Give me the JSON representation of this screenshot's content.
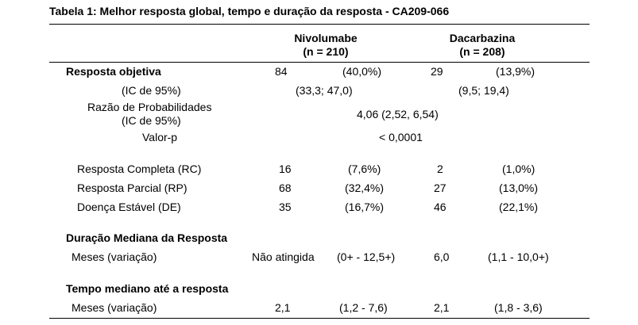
{
  "caption": "Tabela 1: Melhor resposta global, tempo e duração da resposta - CA209-066",
  "columns": {
    "nivolumab": {
      "name": "Nivolumabe",
      "n": "(n = 210)"
    },
    "dacarbazine": {
      "name": "Dacarbazina",
      "n": "(n = 208)"
    }
  },
  "objective": {
    "label": "Resposta objetiva",
    "nivo_n": "84",
    "nivo_pct": "(40,0%)",
    "dacar_n": "29",
    "dacar_pct": "(13,9%)",
    "ci_label": "(IC de 95%)",
    "nivo_ci": "(33,3; 47,0)",
    "dacar_ci": "(9,5; 19,4)",
    "odds_label_1": "Razão de Probabilidades",
    "odds_label_2": "(IC de 95%)",
    "odds_value": "4,06 (2,52, 6,54)",
    "p_label": "Valor-p",
    "p_value": "< 0,0001"
  },
  "responses": [
    {
      "label": "Resposta Completa (RC)",
      "nivo_n": "16",
      "nivo_pct": "(7,6%)",
      "dacar_n": "2",
      "dacar_pct": "(1,0%)"
    },
    {
      "label": "Resposta Parcial (RP)",
      "nivo_n": "68",
      "nivo_pct": "(32,4%)",
      "dacar_n": "27",
      "dacar_pct": "(13,0%)"
    },
    {
      "label": "Doença Estável (DE)",
      "nivo_n": "35",
      "nivo_pct": "(16,7%)",
      "dacar_n": "46",
      "dacar_pct": "(22,1%)"
    }
  ],
  "duration": {
    "label": "Duração Mediana da Resposta",
    "row_label": "Meses (variação)",
    "nivo_value": "Não atingida",
    "nivo_range": "(0+ - 12,5+)",
    "dacar_value": "6,0",
    "dacar_range": "(1,1 - 10,0+)"
  },
  "time_to_response": {
    "label": "Tempo mediano até a resposta",
    "row_label": "Meses (variação)",
    "nivo_value": "2,1",
    "nivo_range": "(1,2 - 7,6)",
    "dacar_value": "2,1",
    "dacar_range": "(1,8 - 3,6)"
  }
}
